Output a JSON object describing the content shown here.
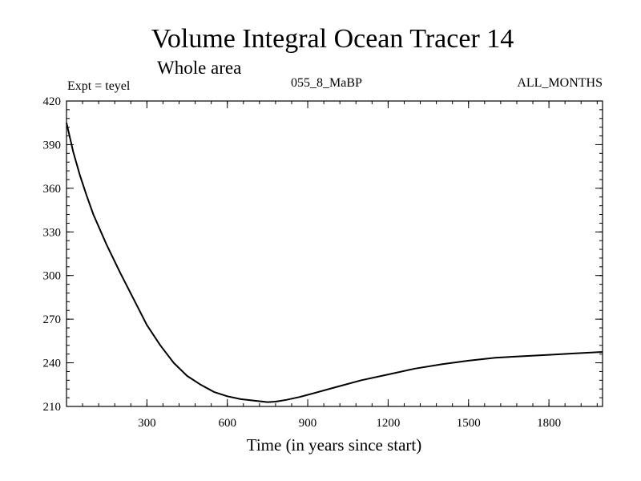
{
  "chart_data": {
    "type": "line",
    "title": "Volume Integral Ocean Tracer 14",
    "subtitle": "Whole area",
    "annotations": {
      "left": "Expt = teyel",
      "center": "055_8_MaBP",
      "right": "ALL_MONTHS"
    },
    "xlabel": "Time (in years since start)",
    "ylabel": "",
    "xlim": [
      0,
      2000
    ],
    "ylim": [
      210,
      420
    ],
    "xticks": [
      300,
      600,
      900,
      1200,
      1500,
      1800
    ],
    "yticks": [
      210,
      240,
      270,
      300,
      330,
      360,
      390,
      420
    ],
    "grid": false,
    "series": [
      {
        "name": "Tracer 14",
        "color": "#000000",
        "x": [
          0,
          25,
          50,
          75,
          100,
          150,
          200,
          250,
          300,
          350,
          400,
          450,
          500,
          550,
          600,
          650,
          700,
          750,
          780,
          820,
          870,
          930,
          1000,
          1100,
          1200,
          1300,
          1400,
          1500,
          1600,
          1700,
          1800,
          1900,
          2000
        ],
        "y": [
          405,
          385,
          369,
          355,
          342,
          321,
          302,
          284,
          266,
          252,
          240,
          231,
          225,
          220,
          217,
          215,
          214,
          213,
          213.3,
          214.5,
          216.5,
          219.5,
          223,
          228,
          232,
          236,
          239,
          241.5,
          243.5,
          244.5,
          245.5,
          246.5,
          247.5
        ]
      }
    ]
  }
}
